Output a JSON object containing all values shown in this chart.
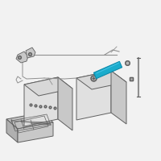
{
  "background_color": "#f2f2f2",
  "fig_bg": "#f2f2f2",
  "highlight_color": "#1aaccc",
  "highlight_dark": "#0d8aaa",
  "highlight_light": "#55ccee",
  "line_color": "#909090",
  "dark_line": "#606060",
  "face_light": "#e0e0e0",
  "face_mid": "#c8c8c8",
  "face_dark": "#b0b0b0",
  "face_top": "#d8d8d8",
  "tray_face": "#c0c0c0",
  "tray_inner": "#aaaaaa",
  "screw_color": "#a0a0a0",
  "bolt_outline": "#707070"
}
